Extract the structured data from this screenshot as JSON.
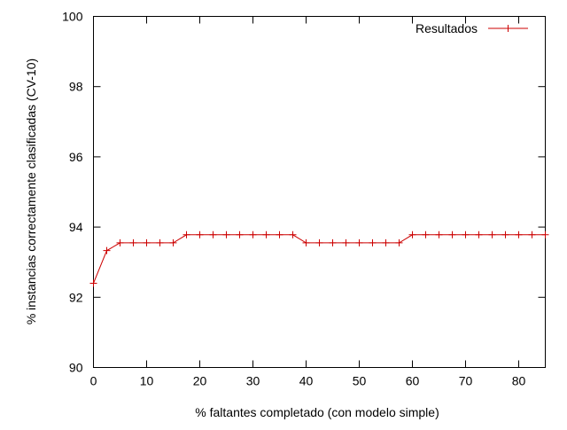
{
  "chart_data": {
    "type": "line",
    "title": "",
    "xlabel": "% faltantes completado (con modelo simple)",
    "ylabel": "% instancias correctamente clasificadas (CV-10)",
    "xlim": [
      0,
      85
    ],
    "ylim": [
      90,
      100
    ],
    "xticks": [
      0,
      10,
      20,
      30,
      40,
      50,
      60,
      70,
      80
    ],
    "yticks": [
      90,
      92,
      94,
      96,
      98,
      100
    ],
    "grid": false,
    "legend_position": "top-right",
    "series": [
      {
        "name": "Resultados",
        "color": "#cc0000",
        "marker": "plus",
        "x": [
          0,
          2.5,
          5,
          7.5,
          10,
          12.5,
          15,
          17.5,
          20,
          22.5,
          25,
          27.5,
          30,
          32.5,
          35,
          37.5,
          40,
          42.5,
          45,
          47.5,
          50,
          52.5,
          55,
          57.5,
          60,
          62.5,
          65,
          67.5,
          70,
          72.5,
          75,
          77.5,
          80,
          82.5,
          85
        ],
        "y": [
          92.4,
          93.33,
          93.55,
          93.55,
          93.55,
          93.55,
          93.55,
          93.78,
          93.78,
          93.78,
          93.78,
          93.78,
          93.78,
          93.78,
          93.78,
          93.78,
          93.55,
          93.55,
          93.55,
          93.55,
          93.55,
          93.55,
          93.55,
          93.55,
          93.78,
          93.78,
          93.78,
          93.78,
          93.78,
          93.78,
          93.78,
          93.78,
          93.78,
          93.78,
          93.78
        ]
      }
    ]
  }
}
